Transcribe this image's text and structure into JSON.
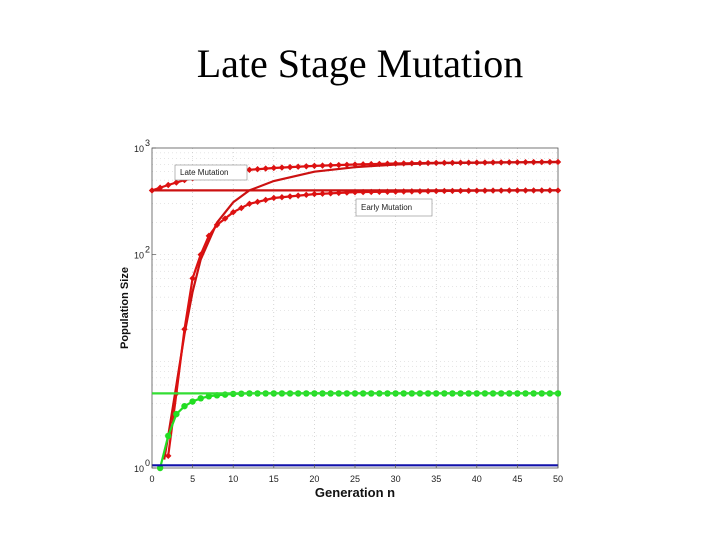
{
  "slide": {
    "title": "Late Stage Mutation"
  },
  "chart_data": {
    "type": "line",
    "title": "",
    "xlabel": "Generation n",
    "ylabel": "Population Size",
    "xlim": [
      0,
      50
    ],
    "ylim": [
      1,
      1000
    ],
    "yscale": "log",
    "x_ticks": [
      0,
      5,
      10,
      15,
      20,
      25,
      30,
      35,
      40,
      45,
      50
    ],
    "y_ticks": [
      {
        "value": 1,
        "base": "10",
        "exp": "0"
      },
      {
        "value": 100,
        "base": "10",
        "exp": "2"
      },
      {
        "value": 1000,
        "base": "10",
        "exp": "3"
      }
    ],
    "grid": "dotted",
    "annotations": [
      "Late Mutation",
      "Early Mutation"
    ],
    "series": [
      {
        "label_ref": "Late Mutation",
        "color": "#dd1111",
        "marker": "diamond",
        "x": [
          0,
          2,
          4,
          6,
          8,
          10,
          12,
          15,
          20,
          25,
          30,
          35,
          40,
          45,
          50
        ],
        "y": [
          400,
          450,
          500,
          540,
          570,
          600,
          625,
          650,
          680,
          700,
          715,
          725,
          730,
          735,
          740
        ]
      },
      {
        "label_ref": "Early Mutation",
        "color": "#cc1111",
        "marker": "none",
        "x": [
          1.5,
          2,
          3,
          4,
          5,
          6,
          8,
          10,
          12,
          15,
          20,
          25,
          30,
          35,
          40,
          45,
          50
        ],
        "y": [
          1.2,
          2,
          6,
          18,
          45,
          90,
          200,
          310,
          400,
          490,
          600,
          660,
          700,
          720,
          730,
          735,
          738
        ]
      },
      {
        "color": "#dd1111",
        "marker": "diamond",
        "x": [
          2,
          3,
          4,
          5,
          6,
          7,
          8,
          10,
          12,
          15,
          20,
          25,
          30,
          35,
          40,
          45,
          50
        ],
        "y": [
          1.3,
          5,
          20,
          60,
          100,
          150,
          190,
          250,
          300,
          340,
          370,
          385,
          390,
          395,
          398,
          400,
          400
        ]
      },
      {
        "color": "#cc1111",
        "marker": "none",
        "x": [
          0,
          50
        ],
        "y": [
          400,
          400
        ]
      },
      {
        "color": "#22dd22",
        "marker": "circle",
        "x": [
          1,
          2,
          3,
          4,
          5,
          6,
          7,
          8,
          10,
          12,
          15,
          20,
          25,
          30,
          35,
          40,
          45,
          50
        ],
        "y": [
          1,
          2,
          3.2,
          3.8,
          4.2,
          4.5,
          4.7,
          4.8,
          4.95,
          5,
          5,
          5,
          5,
          5,
          5,
          5,
          5,
          5
        ]
      },
      {
        "color": "#33dd33",
        "marker": "none",
        "x": [
          0,
          50
        ],
        "y": [
          5,
          5
        ]
      },
      {
        "color": "#1111aa",
        "marker": "none",
        "x": [
          0,
          50
        ],
        "y": [
          1.06,
          1.06
        ]
      }
    ]
  }
}
